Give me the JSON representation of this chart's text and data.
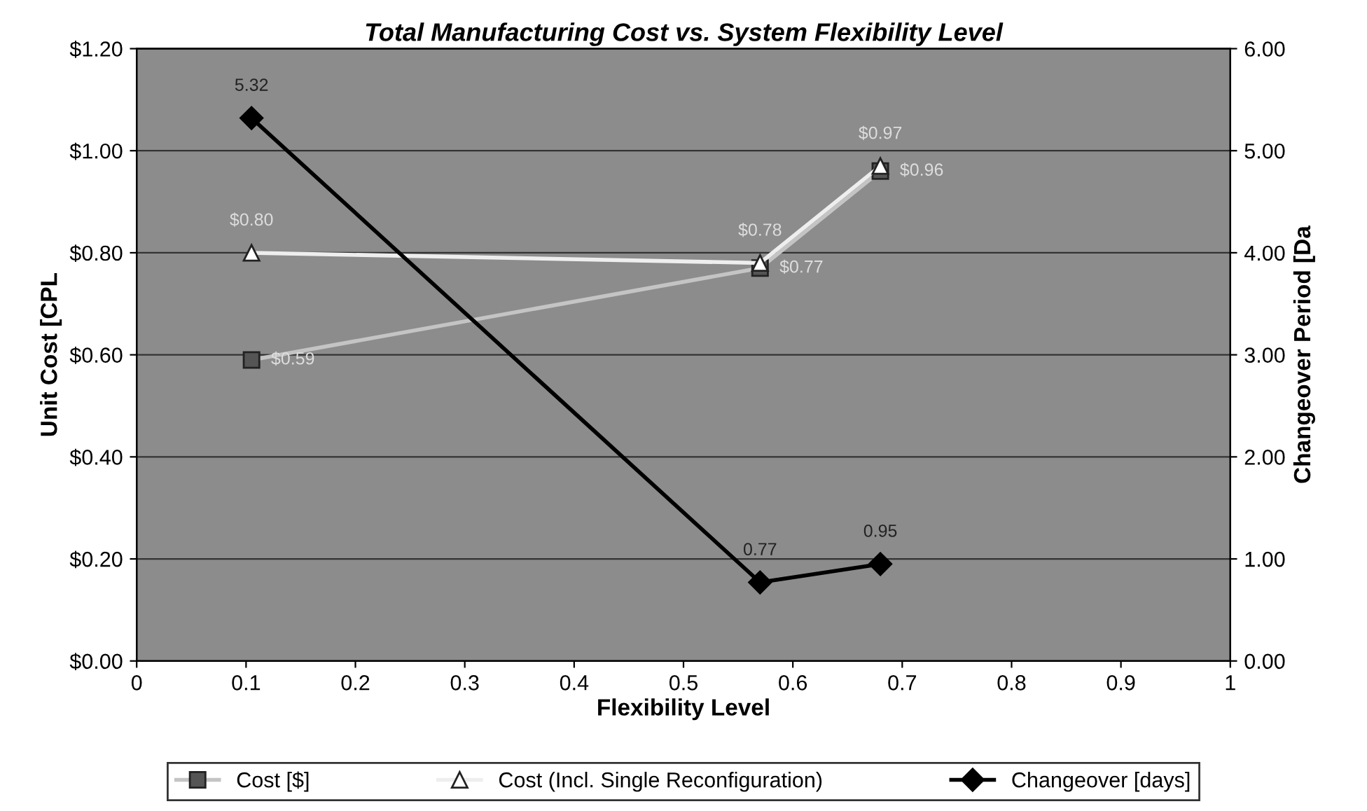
{
  "chart_data": {
    "type": "line",
    "title": "Total Manufacturing Cost vs. System Flexibility Level",
    "xlabel": "Flexibility Level",
    "ylabel": "Unit Cost [CPL",
    "y2label": "Changeover Period [Da",
    "x": [
      0.105,
      0.57,
      0.68
    ],
    "xlim": [
      0,
      1
    ],
    "xticks": [
      0,
      0.1,
      0.2,
      0.3,
      0.4,
      0.5,
      0.6,
      0.7,
      0.8,
      0.9,
      1
    ],
    "ylim": [
      0,
      1.2
    ],
    "yticks": [
      {
        "value": 0,
        "label": "$0.00"
      },
      {
        "value": 0.2,
        "label": "$0.20"
      },
      {
        "value": 0.4,
        "label": "$0.40"
      },
      {
        "value": 0.6,
        "label": "$0.60"
      },
      {
        "value": 0.8,
        "label": "$0.80"
      },
      {
        "value": 1.0,
        "label": "$1.00"
      },
      {
        "value": 1.2,
        "label": "$1.20"
      }
    ],
    "y2lim": [
      0,
      6
    ],
    "y2ticks": [
      {
        "value": 0,
        "label": "0.00"
      },
      {
        "value": 1,
        "label": "1.00"
      },
      {
        "value": 2,
        "label": "2.00"
      },
      {
        "value": 3,
        "label": "3.00"
      },
      {
        "value": 4,
        "label": "4.00"
      },
      {
        "value": 5,
        "label": "5.00"
      },
      {
        "value": 6,
        "label": "6.00"
      }
    ],
    "series": [
      {
        "name": "Cost [$]",
        "color": "#c4c4c4",
        "marker": "square",
        "values": [
          0.59,
          0.77,
          0.96
        ],
        "value_labels": [
          "$0.59",
          "$0.77",
          "$0.96"
        ]
      },
      {
        "name": "Cost (Incl. Single Reconfiguration)",
        "color": "#eeeeee",
        "marker": "triangle",
        "values": [
          0.8,
          0.78,
          0.97
        ],
        "value_labels": [
          "$0.80",
          "$0.78",
          "$0.97"
        ]
      },
      {
        "name": "Changeover [days]",
        "color": "#000000",
        "marker": "diamond",
        "axis": "y2",
        "values": [
          5.32,
          0.77,
          0.95
        ],
        "value_labels": [
          "5.32",
          "0.77",
          "0.95"
        ]
      }
    ],
    "grid": "y",
    "legend": "bottom"
  }
}
